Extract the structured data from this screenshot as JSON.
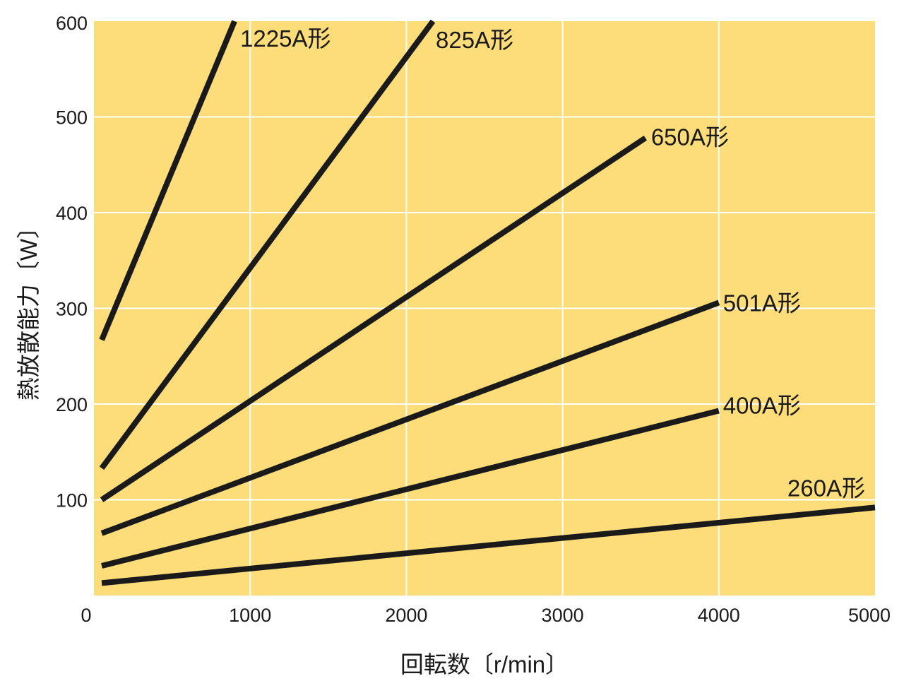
{
  "colors": {
    "plot_background": "#fddc7a",
    "grid": "#ffffff",
    "line": "#1a1a1a",
    "text": "#1a1a1a"
  },
  "chart_data": {
    "type": "line",
    "title": "",
    "xlabel": "回転数〔r/min〕",
    "ylabel": "熱放散能力〔W〕",
    "xlim": [
      0,
      5000
    ],
    "ylim": [
      0,
      600
    ],
    "x_ticks": [
      0,
      1000,
      2000,
      3000,
      4000,
      5000
    ],
    "y_ticks": [
      100,
      200,
      300,
      400,
      500,
      600
    ],
    "grid": true,
    "legend": "inline labels at line ends",
    "series": [
      {
        "name": "1225A形",
        "x": [
          50,
          900
        ],
        "y": [
          267,
          600
        ]
      },
      {
        "name": "825A形",
        "x": [
          50,
          2170
        ],
        "y": [
          133,
          600
        ]
      },
      {
        "name": "650A形",
        "x": [
          50,
          3530
        ],
        "y": [
          100,
          478
        ]
      },
      {
        "name": "501A形",
        "x": [
          50,
          4000
        ],
        "y": [
          65,
          306
        ]
      },
      {
        "name": "400A形",
        "x": [
          50,
          4000
        ],
        "y": [
          31,
          193
        ]
      },
      {
        "name": "260A形",
        "x": [
          50,
          5000
        ],
        "y": [
          13,
          92
        ]
      }
    ]
  }
}
